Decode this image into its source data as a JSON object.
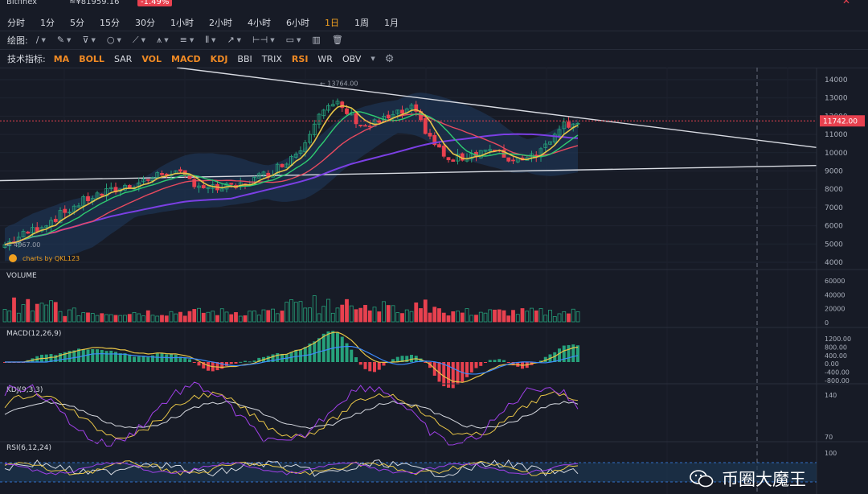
{
  "topbar": {
    "exchange": "Bitfinex",
    "price_cny": "≈¥81959.16",
    "change": "-1.49%"
  },
  "intervals": [
    {
      "label": "分时",
      "active": false
    },
    {
      "label": "1分",
      "active": false
    },
    {
      "label": "5分",
      "active": false
    },
    {
      "label": "15分",
      "active": false
    },
    {
      "label": "30分",
      "active": false
    },
    {
      "label": "1小时",
      "active": false
    },
    {
      "label": "2小时",
      "active": false
    },
    {
      "label": "4小时",
      "active": false
    },
    {
      "label": "6小时",
      "active": false
    },
    {
      "label": "1日",
      "active": true
    },
    {
      "label": "1周",
      "active": false
    },
    {
      "label": "1月",
      "active": false
    }
  ],
  "drawing": {
    "label": "绘图:",
    "tools": [
      "line-tool",
      "brush-tool",
      "fib-tool",
      "shape-tool",
      "pen-tool",
      "pattern-tool",
      "text-tool",
      "parallel-tool",
      "arrow-tool",
      "measure-tool",
      "comment-tool",
      "stats-tool",
      "trash-tool"
    ]
  },
  "indicators": {
    "label": "技术指标:",
    "items": [
      {
        "label": "MA",
        "active": true
      },
      {
        "label": "BOLL",
        "active": true
      },
      {
        "label": "SAR",
        "active": false
      },
      {
        "label": "VOL",
        "active": true
      },
      {
        "label": "MACD",
        "active": true
      },
      {
        "label": "KDJ",
        "active": true
      },
      {
        "label": "BBI",
        "active": false
      },
      {
        "label": "TRIX",
        "active": false
      },
      {
        "label": "RSI",
        "active": true
      },
      {
        "label": "WR",
        "active": false
      },
      {
        "label": "OBV",
        "active": false
      }
    ]
  },
  "main_chart": {
    "y_ticks": [
      "14000",
      "13000",
      "12000",
      "11000",
      "10000",
      "9000",
      "8000",
      "7000",
      "6000",
      "5000",
      "4000"
    ],
    "current_price": "11742.00",
    "high_label": "13764.00",
    "low_label": "4967.00",
    "brand": "charts by QKL123"
  },
  "panels": {
    "volume": {
      "title": "VOLUME",
      "ticks": [
        "60000",
        "40000",
        "20000",
        "0"
      ]
    },
    "macd": {
      "title": "MACD(12,26,9)",
      "ticks": [
        "1200.00",
        "800.00",
        "400.00",
        "0.00",
        "-400.00",
        "-800.00"
      ]
    },
    "kdj": {
      "title": "KDJ(9,3,3)",
      "ticks": [
        "140",
        "70"
      ]
    },
    "rsi": {
      "title": "RSI(6,12,24)",
      "ticks": [
        "100"
      ]
    }
  },
  "watermark": "币圈大魔王",
  "colors": {
    "up": "#26a17b",
    "down": "#e8414f",
    "accent": "#f0a020",
    "bg": "#171b26",
    "ma_yellow": "#e8c547",
    "ma_green": "#2ecc71",
    "ma_red": "#e84a5f",
    "ma_purple": "#7b3fe4"
  }
}
